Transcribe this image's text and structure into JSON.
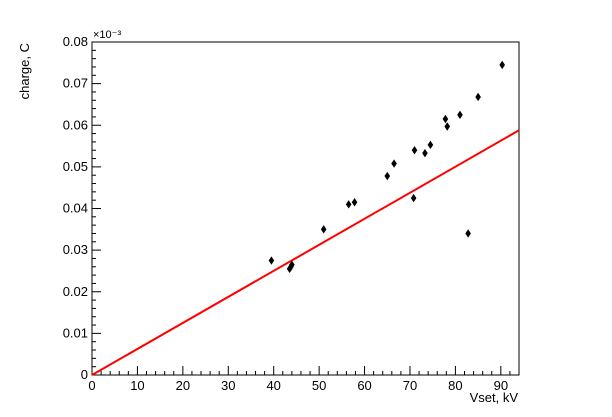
{
  "chart_data": {
    "type": "scatter",
    "xlabel": "Vset, kV",
    "ylabel": "charge, C",
    "exponent_label": "×10⁻³",
    "xlim": [
      0,
      94
    ],
    "ylim": [
      0,
      0.08
    ],
    "x_ticks": [
      0,
      10,
      20,
      30,
      40,
      50,
      60,
      70,
      80,
      90
    ],
    "x_tick_labels": [
      "0",
      "10",
      "20",
      "30",
      "40",
      "50",
      "60",
      "70",
      "80",
      "90"
    ],
    "y_ticks": [
      0,
      0.01,
      0.02,
      0.03,
      0.04,
      0.05,
      0.06,
      0.07,
      0.08
    ],
    "y_tick_labels": [
      "0",
      "0.01",
      "0.02",
      "0.03",
      "0.04",
      "0.05",
      "0.06",
      "0.07",
      "0.08"
    ],
    "grid": false,
    "marker": "diamond",
    "marker_color": "#000000",
    "fit_line_color": "#ff0000",
    "points": [
      {
        "x": 39.5,
        "y": 0.0275
      },
      {
        "x": 43.5,
        "y": 0.0255
      },
      {
        "x": 43.8,
        "y": 0.026
      },
      {
        "x": 44.0,
        "y": 0.0265
      },
      {
        "x": 51.0,
        "y": 0.035
      },
      {
        "x": 56.5,
        "y": 0.041
      },
      {
        "x": 57.8,
        "y": 0.0415
      },
      {
        "x": 65.0,
        "y": 0.0478
      },
      {
        "x": 66.5,
        "y": 0.0508
      },
      {
        "x": 70.8,
        "y": 0.0425
      },
      {
        "x": 71.0,
        "y": 0.054
      },
      {
        "x": 73.3,
        "y": 0.0533
      },
      {
        "x": 74.5,
        "y": 0.0553
      },
      {
        "x": 77.8,
        "y": 0.0615
      },
      {
        "x": 78.2,
        "y": 0.0597
      },
      {
        "x": 81.0,
        "y": 0.0625
      },
      {
        "x": 82.8,
        "y": 0.034
      },
      {
        "x": 85.0,
        "y": 0.0668
      },
      {
        "x": 90.3,
        "y": 0.0745
      }
    ],
    "fit_line": {
      "x": [
        0,
        94
      ],
      "y": [
        0,
        0.0588
      ]
    }
  }
}
